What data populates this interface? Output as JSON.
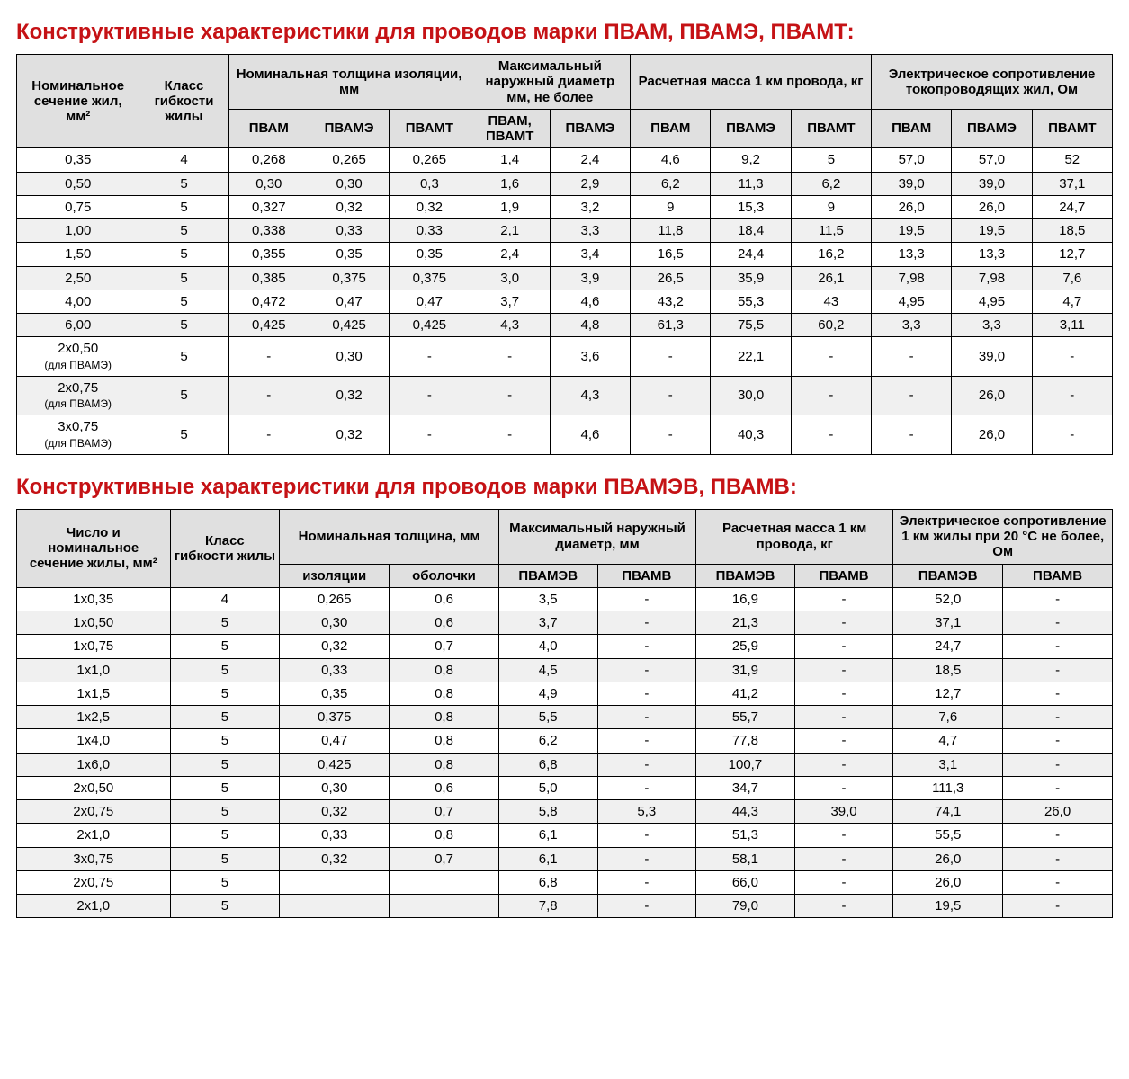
{
  "colors": {
    "heading": "#c51215",
    "header_bg": "#e0e0e0",
    "row_alt_bg": "#f0f0f0",
    "border": "#000000",
    "page_bg": "#ffffff"
  },
  "typography": {
    "heading_fontsize_pt": 18,
    "header_fontsize_pt": 11,
    "cell_fontsize_pt": 11,
    "font_family": "Arial"
  },
  "table1": {
    "title": "Конструктивные характеристики для проводов марки ПВАМ, ПВАМЭ, ПВАМТ:",
    "headers": {
      "col1": "Номинальное сечение жил, мм²",
      "col2": "Класс гибкости жилы",
      "grp_thickness": "Номинальная толщина изоляции, мм",
      "grp_outerdia": "Максимальный наружный диаметр мм, не более",
      "grp_mass": "Расчетная масса 1 км провода, кг",
      "grp_resist": "Электрическое сопротивление токопроводящих жил, Ом",
      "sub_pvam": "ПВАМ",
      "sub_pvame": "ПВАМЭ",
      "sub_pvamt": "ПВАМТ",
      "sub_pvam_pvamt": "ПВАМ, ПВАМТ"
    },
    "rows": [
      [
        "0,35",
        "4",
        "0,268",
        "0,265",
        "0,265",
        "1,4",
        "2,4",
        "4,6",
        "9,2",
        "5",
        "57,0",
        "57,0",
        "52"
      ],
      [
        "0,50",
        "5",
        "0,30",
        "0,30",
        "0,3",
        "1,6",
        "2,9",
        "6,2",
        "11,3",
        "6,2",
        "39,0",
        "39,0",
        "37,1"
      ],
      [
        "0,75",
        "5",
        "0,327",
        "0,32",
        "0,32",
        "1,9",
        "3,2",
        "9",
        "15,3",
        "9",
        "26,0",
        "26,0",
        "24,7"
      ],
      [
        "1,00",
        "5",
        "0,338",
        "0,33",
        "0,33",
        "2,1",
        "3,3",
        "11,8",
        "18,4",
        "11,5",
        "19,5",
        "19,5",
        "18,5"
      ],
      [
        "1,50",
        "5",
        "0,355",
        "0,35",
        "0,35",
        "2,4",
        "3,4",
        "16,5",
        "24,4",
        "16,2",
        "13,3",
        "13,3",
        "12,7"
      ],
      [
        "2,50",
        "5",
        "0,385",
        "0,375",
        "0,375",
        "3,0",
        "3,9",
        "26,5",
        "35,9",
        "26,1",
        "7,98",
        "7,98",
        "7,6"
      ],
      [
        "4,00",
        "5",
        "0,472",
        "0,47",
        "0,47",
        "3,7",
        "4,6",
        "43,2",
        "55,3",
        "43",
        "4,95",
        "4,95",
        "4,7"
      ],
      [
        "6,00",
        "5",
        "0,425",
        "0,425",
        "0,425",
        "4,3",
        "4,8",
        "61,3",
        "75,5",
        "60,2",
        "3,3",
        "3,3",
        "3,11"
      ],
      [
        "2х0,50\n(для ПВАМЭ)",
        "5",
        "-",
        "0,30",
        "-",
        "-",
        "3,6",
        "-",
        "22,1",
        "-",
        "-",
        "39,0",
        "-"
      ],
      [
        "2х0,75\n(для ПВАМЭ)",
        "5",
        "-",
        "0,32",
        "-",
        "-",
        "4,3",
        "-",
        "30,0",
        "-",
        "-",
        "26,0",
        "-"
      ],
      [
        "3х0,75\n(для ПВАМЭ)",
        "5",
        "-",
        "0,32",
        "-",
        "-",
        "4,6",
        "-",
        "40,3",
        "-",
        "-",
        "26,0",
        "-"
      ]
    ]
  },
  "table2": {
    "title": "Конструктивные характеристики для проводов марки ПВАМЭВ, ПВАМВ:",
    "headers": {
      "col1": "Число и номинальное сечение жилы, мм²",
      "col2": "Класс гибкости жилы",
      "grp_thickness": "Номинальная толщина, мм",
      "grp_outerdia": "Максимальный наружный диаметр, мм",
      "grp_mass": "Расчетная масса 1 км провода, кг",
      "grp_resist": "Электрическое сопротивление 1 км жилы при 20 °С не более, Ом",
      "sub_insul": "изоляции",
      "sub_sheath": "оболочки",
      "sub_pvamev": "ПВАМЭВ",
      "sub_pvamv": "ПВАМВ"
    },
    "rows": [
      [
        "1х0,35",
        "4",
        "0,265",
        "0,6",
        "3,5",
        "-",
        "16,9",
        "-",
        "52,0",
        "-"
      ],
      [
        "1х0,50",
        "5",
        "0,30",
        "0,6",
        "3,7",
        "-",
        "21,3",
        "-",
        "37,1",
        "-"
      ],
      [
        "1х0,75",
        "5",
        "0,32",
        "0,7",
        "4,0",
        "-",
        "25,9",
        "-",
        "24,7",
        "-"
      ],
      [
        "1х1,0",
        "5",
        "0,33",
        "0,8",
        "4,5",
        "-",
        "31,9",
        "-",
        "18,5",
        "-"
      ],
      [
        "1х1,5",
        "5",
        "0,35",
        "0,8",
        "4,9",
        "-",
        "41,2",
        "-",
        "12,7",
        "-"
      ],
      [
        "1х2,5",
        "5",
        "0,375",
        "0,8",
        "5,5",
        "-",
        "55,7",
        "-",
        "7,6",
        "-"
      ],
      [
        "1х4,0",
        "5",
        "0,47",
        "0,8",
        "6,2",
        "-",
        "77,8",
        "-",
        "4,7",
        "-"
      ],
      [
        "1х6,0",
        "5",
        "0,425",
        "0,8",
        "6,8",
        "-",
        "100,7",
        "-",
        "3,1",
        "-"
      ],
      [
        "2х0,50",
        "5",
        "0,30",
        "0,6",
        "5,0",
        "-",
        "34,7",
        "-",
        "111,3",
        "-"
      ],
      [
        "2х0,75",
        "5",
        "0,32",
        "0,7",
        "5,8",
        "5,3",
        "44,3",
        "39,0",
        "74,1",
        "26,0"
      ],
      [
        "2х1,0",
        "5",
        "0,33",
        "0,8",
        "6,1",
        "-",
        "51,3",
        "-",
        "55,5",
        "-"
      ],
      [
        "3х0,75",
        "5",
        "0,32",
        "0,7",
        "6,1",
        "-",
        "58,1",
        "-",
        "26,0",
        "-"
      ],
      [
        "2х0,75",
        "5",
        "",
        "",
        "6,8",
        "-",
        "66,0",
        "-",
        "26,0",
        "-"
      ],
      [
        "2х1,0",
        "5",
        "",
        "",
        "7,8",
        "-",
        "79,0",
        "-",
        "19,5",
        "-"
      ]
    ]
  }
}
